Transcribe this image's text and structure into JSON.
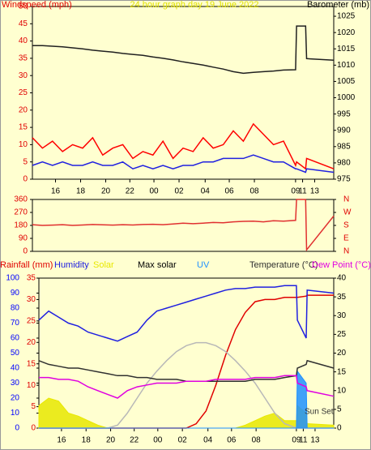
{
  "chart_data": [
    {
      "type": "line",
      "title": "24 hour graph day   19 June 2022",
      "title_color": "#e0e000",
      "ylabel": "Windspeed (mph)",
      "ycolor": "#e00000",
      "y2label": "Barometer (mb)",
      "y2color": "#000000",
      "x": [
        0,
        1,
        2,
        3,
        4,
        5,
        6,
        7,
        8,
        9,
        10,
        11,
        12,
        13,
        14,
        15,
        16,
        17,
        18,
        19,
        20,
        21,
        22,
        23,
        24,
        25,
        26.2,
        26.3,
        27.2,
        27.3,
        30
      ],
      "xlim": [
        0,
        30
      ],
      "xticks": [
        {
          "value": 2.3,
          "label": "16"
        },
        {
          "value": 4.8,
          "label": "18"
        },
        {
          "value": 7.3,
          "label": "20"
        },
        {
          "value": 9.7,
          "label": "22"
        },
        {
          "value": 12.1,
          "label": "00"
        },
        {
          "value": 14.6,
          "label": "02"
        },
        {
          "value": 17.2,
          "label": "04"
        },
        {
          "value": 19.6,
          "label": "06"
        },
        {
          "value": 22.1,
          "label": "08"
        },
        {
          "value": 26.2,
          "label": "09"
        },
        {
          "value": 26.9,
          "label": "11"
        },
        {
          "value": 28.1,
          "label": "13"
        }
      ],
      "ylim": [
        0,
        50
      ],
      "yticks": [
        0,
        5,
        10,
        15,
        20,
        25,
        30,
        35,
        40,
        45,
        50
      ],
      "y2lim": [
        975,
        1028
      ],
      "y2ticks": [
        975,
        980,
        985,
        990,
        995,
        1000,
        1005,
        1010,
        1015,
        1020,
        1025
      ],
      "series": [
        {
          "color": "#ff0000",
          "values": [
            12,
            9,
            11,
            8,
            10,
            9,
            12,
            7,
            9,
            10,
            6,
            8,
            7,
            11,
            6,
            9,
            8,
            12,
            9,
            10,
            14,
            11,
            16,
            13,
            10,
            11,
            4,
            5,
            3,
            6,
            3
          ]
        },
        {
          "color": "#2020e0",
          "values": [
            4,
            5,
            4,
            5,
            4,
            4,
            5,
            4,
            4,
            5,
            3,
            4,
            3,
            4,
            3,
            4,
            4,
            5,
            5,
            6,
            6,
            6,
            7,
            6,
            5,
            5,
            3,
            3,
            2,
            3,
            2
          ]
        },
        {
          "color": "#202020",
          "axis": "y2",
          "values": [
            1016,
            1016,
            1015.8,
            1015.6,
            1015.3,
            1015,
            1014.6,
            1014.3,
            1014,
            1013.6,
            1013.3,
            1013,
            1012.5,
            1012.1,
            1011.6,
            1011,
            1010.5,
            1010,
            1009.4,
            1008.8,
            1008,
            1007.5,
            1007.8,
            1008,
            1008.2,
            1008.5,
            1008.6,
            1022,
            1022,
            1012,
            1011.5
          ]
        }
      ]
    },
    {
      "type": "line",
      "ycolor": "#e00000",
      "y2color": "#e00000",
      "x": [
        0,
        1,
        2,
        3,
        4,
        5,
        6,
        7,
        8,
        9,
        10,
        11,
        12,
        13,
        14,
        15,
        16,
        17,
        18,
        19,
        20,
        21,
        22,
        23,
        24,
        25,
        26.2,
        26.3,
        27.2,
        27.3,
        30
      ],
      "xlim": [
        0,
        30
      ],
      "ylim": [
        0,
        360
      ],
      "yticks": [
        0,
        90,
        180,
        270,
        360
      ],
      "y2lim": [
        0,
        360
      ],
      "y2ticks": [
        {
          "value": 360,
          "label": "N"
        },
        {
          "value": 270,
          "label": "W"
        },
        {
          "value": 180,
          "label": "S"
        },
        {
          "value": 90,
          "label": "E"
        },
        {
          "value": 0,
          "label": "N"
        }
      ],
      "series": [
        {
          "color": "#e03030",
          "values": [
            185,
            180,
            182,
            185,
            180,
            183,
            186,
            184,
            182,
            185,
            183,
            186,
            188,
            185,
            190,
            195,
            192,
            196,
            200,
            198,
            205,
            208,
            210,
            205,
            212,
            210,
            215,
            360,
            360,
            10,
            245
          ]
        }
      ]
    },
    {
      "type": "line",
      "ycolor": "#0000ff",
      "y3color": "#e00000",
      "y2color": "#000000",
      "annotation": "Sun Set",
      "x": [
        0,
        1,
        2,
        3,
        4,
        5,
        6,
        7,
        8,
        9,
        10,
        11,
        12,
        13,
        14,
        15,
        16,
        17,
        18,
        19,
        20,
        21,
        22,
        23,
        24,
        25,
        26.2,
        26.3,
        27.2,
        27.3,
        30
      ],
      "xlim": [
        0,
        30
      ],
      "xticks": [
        {
          "value": 2.3,
          "label": "16"
        },
        {
          "value": 4.8,
          "label": "18"
        },
        {
          "value": 7.3,
          "label": "20"
        },
        {
          "value": 9.7,
          "label": "22"
        },
        {
          "value": 12.1,
          "label": "00"
        },
        {
          "value": 14.6,
          "label": "02"
        },
        {
          "value": 17.2,
          "label": "04"
        },
        {
          "value": 19.6,
          "label": "06"
        },
        {
          "value": 22.1,
          "label": "08"
        },
        {
          "value": 26.2,
          "label": "09"
        },
        {
          "value": 26.9,
          "label": "11"
        },
        {
          "value": 28.1,
          "label": "13"
        }
      ],
      "ylim": [
        0,
        100
      ],
      "yticks": [
        0,
        10,
        20,
        30,
        40,
        50,
        60,
        70,
        80,
        90,
        100
      ],
      "y3lim": [
        0,
        35
      ],
      "y3ticks": [
        0,
        5,
        10,
        15,
        20,
        25,
        30,
        35
      ],
      "y2lim": [
        0,
        40
      ],
      "y2ticks": [
        0,
        5,
        10,
        15,
        20,
        25,
        30,
        35,
        40
      ],
      "series": [
        {
          "name": "Rainfall (mm)",
          "color": "#e00000",
          "axis": "y3",
          "values": [
            0,
            0,
            0,
            0,
            0,
            0,
            0,
            0,
            0,
            0,
            0,
            0,
            0,
            0,
            0,
            0,
            1,
            4,
            10,
            17,
            23,
            27,
            29.5,
            30,
            30,
            30.5,
            30.5,
            30.5,
            30.8,
            31,
            31
          ]
        },
        {
          "name": "Humidity",
          "color": "#2020e0",
          "values": [
            72,
            78,
            74,
            70,
            68,
            64,
            62,
            60,
            58,
            61,
            64,
            72,
            78,
            80,
            82,
            84,
            86,
            88,
            90,
            92,
            93,
            93,
            94,
            94,
            94,
            95,
            95,
            72,
            60,
            92,
            90
          ]
        },
        {
          "name": "Solar",
          "color": "#e8e800",
          "style": "area",
          "values": [
            15,
            20,
            18,
            10,
            8,
            5,
            2,
            0,
            0,
            0,
            0,
            0,
            0,
            0,
            0,
            0,
            0,
            0,
            0,
            0,
            0,
            2,
            5,
            8,
            10,
            5,
            5,
            15,
            10,
            3,
            2
          ]
        },
        {
          "name": "Max solar",
          "color": "#b8b8b8",
          "legend_color": "#000000",
          "values": [
            0,
            0,
            0,
            0,
            0,
            0,
            0,
            0,
            2,
            10,
            20,
            30,
            38,
            45,
            51,
            55,
            57,
            57,
            55,
            51,
            45,
            38,
            30,
            20,
            10,
            3,
            0,
            0,
            0,
            0,
            0
          ]
        },
        {
          "name": "UV",
          "color": "#1e90ff",
          "style": "area",
          "values": [
            0,
            0,
            0,
            0,
            0,
            0,
            0,
            0,
            0,
            0,
            0,
            0,
            0,
            0,
            0,
            0,
            0,
            0,
            0,
            0,
            0,
            0,
            0,
            0,
            0,
            0,
            0,
            38,
            30,
            0,
            0
          ]
        },
        {
          "name": "Temperature (°C)",
          "color": "#303030",
          "axis": "y2",
          "values": [
            18,
            17,
            16.5,
            16,
            16,
            15.5,
            15,
            14.5,
            14,
            14,
            13.5,
            13.5,
            13,
            13,
            13,
            12.5,
            12.5,
            12.5,
            12.5,
            12.5,
            12.5,
            12.5,
            13,
            13,
            13,
            13.5,
            14,
            16,
            17,
            18,
            16
          ]
        },
        {
          "name": "Dew Point (°C)",
          "color": "#e000e0",
          "axis": "y2",
          "values": [
            13.5,
            13.5,
            13,
            13,
            12.5,
            11,
            10,
            9,
            8,
            10,
            11,
            11.5,
            12,
            12,
            12,
            12.5,
            12.5,
            12.5,
            13,
            13,
            13,
            13,
            13.5,
            13.5,
            13.5,
            14,
            14,
            12,
            11,
            10,
            8.5
          ]
        }
      ]
    }
  ]
}
